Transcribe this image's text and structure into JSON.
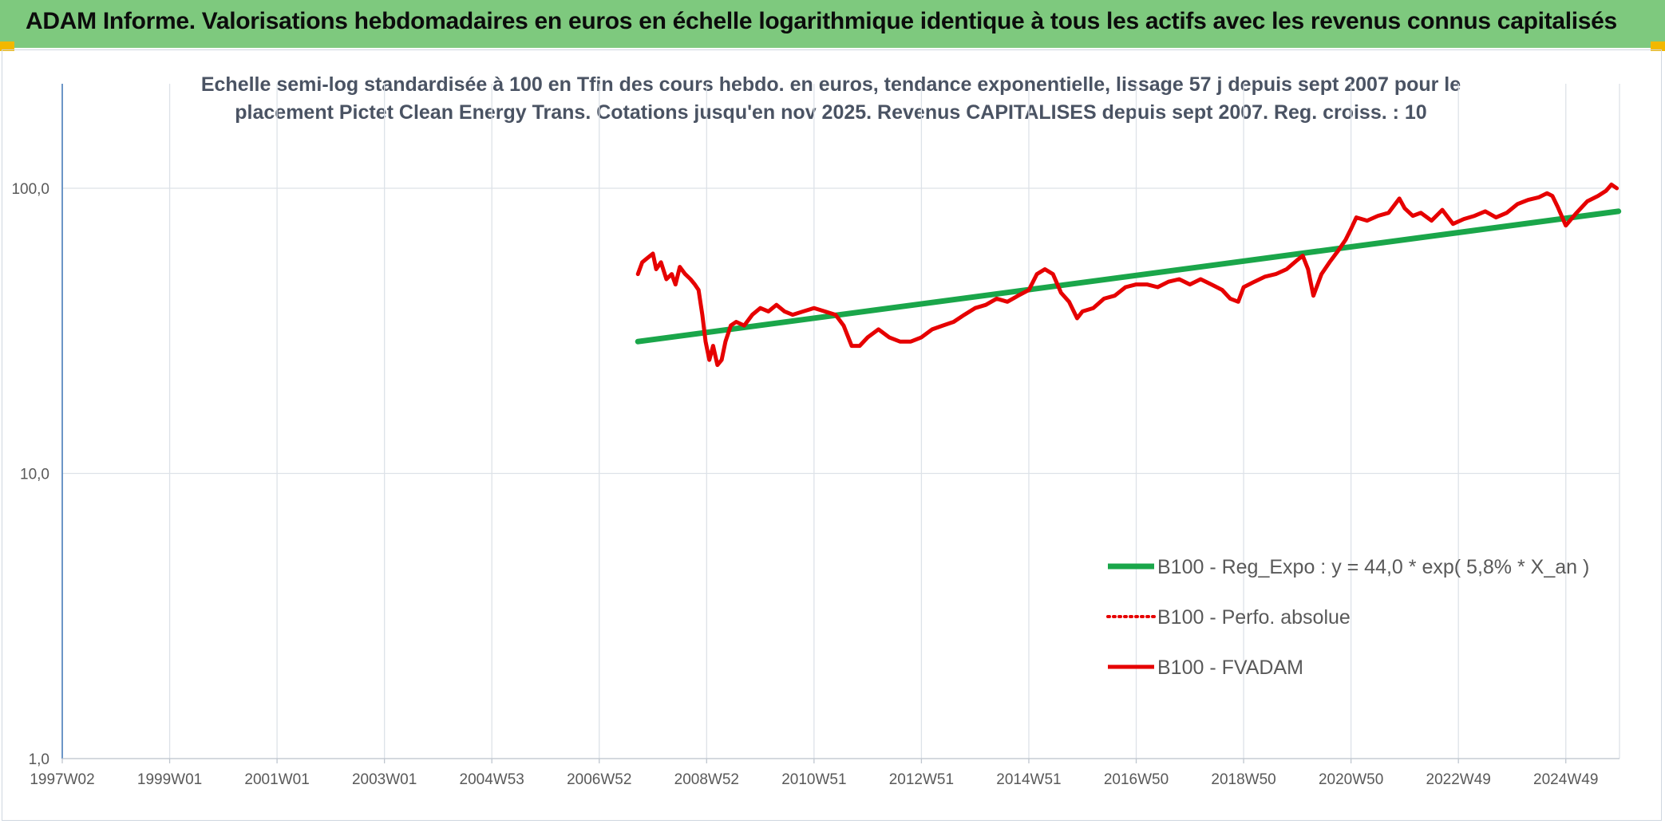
{
  "header": {
    "title": "ADAM Informe. Valorisations hebdomadaires en euros en échelle logarithmique identique à tous les actifs avec les revenus connus capitalisés"
  },
  "colors": {
    "banner": "#7ec97e",
    "trend": "#1aa64a",
    "fvadam": "#e60000",
    "perfo": "#e60000",
    "axis": "#4a7ebb",
    "grid": "#dde2e8",
    "corner": "#f2b800"
  },
  "chart_data": {
    "type": "line",
    "subtitle": [
      "Echelle semi-log standardisée à 100 en Tfin des cours hebdo. en euros, tendance exponentielle, lissage 57 j depuis sept 2007 pour le",
      "placement Pictet Clean Energy Trans. Cotations jusqu'en nov 2025. Revenus CAPITALISES depuis sept 2007. Reg. croiss. : 10"
    ],
    "y_scale": "log",
    "ylim": [
      1,
      200
    ],
    "y_ticks": [
      1,
      10,
      100
    ],
    "y_tick_labels": [
      "1,0",
      "10,0",
      "100,0"
    ],
    "x_range": [
      1997.0,
      2026.0
    ],
    "x_ticks": [
      {
        "label": "1997W02",
        "x": 1997.0
      },
      {
        "label": "1999W01",
        "x": 1999.0
      },
      {
        "label": "2001W01",
        "x": 2001.0
      },
      {
        "label": "2003W01",
        "x": 2003.0
      },
      {
        "label": "2004W53",
        "x": 2005.0
      },
      {
        "label": "2006W52",
        "x": 2007.0
      },
      {
        "label": "2008W52",
        "x": 2009.0
      },
      {
        "label": "2010W51",
        "x": 2011.0
      },
      {
        "label": "2012W51",
        "x": 2013.0
      },
      {
        "label": "2014W51",
        "x": 2015.0
      },
      {
        "label": "2016W50",
        "x": 2017.0
      },
      {
        "label": "2018W50",
        "x": 2019.0
      },
      {
        "label": "2020W50",
        "x": 2021.0
      },
      {
        "label": "2022W49",
        "x": 2023.0
      },
      {
        "label": "2024W49",
        "x": 2025.0
      }
    ],
    "grid": true,
    "legend_position": "bottom-right",
    "series": [
      {
        "name": "B100 - Reg_Expo : y = 44,0 * exp( 5,8% *  X_an )",
        "style": "solid-thick",
        "color": "#1aa64a",
        "x": [
          2007.72,
          2025.98
        ],
        "y": [
          29.0,
          83.0
        ]
      },
      {
        "name": "B100 - Perfo. absolue",
        "style": "dotted",
        "color": "#e60000",
        "x": [],
        "y": []
      },
      {
        "name": "B100 - FVADAM",
        "style": "solid",
        "color": "#e60000",
        "x": [
          2007.72,
          2007.8,
          2007.9,
          2008.0,
          2008.06,
          2008.15,
          2008.25,
          2008.35,
          2008.42,
          2008.5,
          2008.6,
          2008.7,
          2008.78,
          2008.85,
          2008.92,
          2008.98,
          2009.05,
          2009.12,
          2009.2,
          2009.28,
          2009.35,
          2009.45,
          2009.55,
          2009.7,
          2009.85,
          2010.0,
          2010.15,
          2010.3,
          2010.45,
          2010.6,
          2010.8,
          2011.0,
          2011.2,
          2011.4,
          2011.55,
          2011.7,
          2011.85,
          2012.0,
          2012.2,
          2012.4,
          2012.6,
          2012.8,
          2013.0,
          2013.2,
          2013.4,
          2013.6,
          2013.8,
          2014.0,
          2014.2,
          2014.4,
          2014.6,
          2014.8,
          2015.0,
          2015.15,
          2015.3,
          2015.45,
          2015.6,
          2015.75,
          2015.9,
          2016.0,
          2016.2,
          2016.4,
          2016.6,
          2016.8,
          2017.0,
          2017.2,
          2017.4,
          2017.6,
          2017.8,
          2018.0,
          2018.2,
          2018.4,
          2018.6,
          2018.75,
          2018.9,
          2019.0,
          2019.2,
          2019.4,
          2019.6,
          2019.8,
          2020.0,
          2020.1,
          2020.2,
          2020.3,
          2020.45,
          2020.6,
          2020.75,
          2020.9,
          2021.0,
          2021.1,
          2021.3,
          2021.5,
          2021.7,
          2021.9,
          2022.0,
          2022.15,
          2022.3,
          2022.5,
          2022.7,
          2022.9,
          2023.1,
          2023.3,
          2023.5,
          2023.7,
          2023.9,
          2024.1,
          2024.3,
          2024.5,
          2024.65,
          2024.75,
          2024.85,
          2025.0,
          2025.2,
          2025.4,
          2025.6,
          2025.75,
          2025.85,
          2025.95
        ],
        "y": [
          50,
          55,
          57,
          59,
          52,
          55,
          48,
          50,
          46,
          53,
          50,
          48,
          46,
          44,
          36,
          29,
          25,
          28,
          24,
          25,
          29,
          33,
          34,
          33,
          36,
          38,
          37,
          39,
          37,
          36,
          37,
          38,
          37,
          36,
          33,
          28,
          28,
          30,
          32,
          30,
          29,
          29,
          30,
          32,
          33,
          34,
          36,
          38,
          39,
          41,
          40,
          42,
          44,
          50,
          52,
          50,
          43,
          40,
          35,
          37,
          38,
          41,
          42,
          45,
          46,
          46,
          45,
          47,
          48,
          46,
          48,
          46,
          44,
          41,
          40,
          45,
          47,
          49,
          50,
          52,
          56,
          58,
          52,
          42,
          50,
          55,
          60,
          66,
          72,
          79,
          77,
          80,
          82,
          92,
          85,
          80,
          82,
          77,
          84,
          75,
          78,
          80,
          83,
          79,
          82,
          88,
          91,
          93,
          96,
          94,
          86,
          74,
          82,
          90,
          94,
          98,
          103,
          100
        ]
      }
    ]
  }
}
